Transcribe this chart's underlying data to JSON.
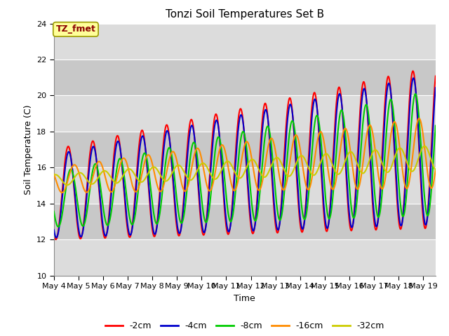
{
  "title": "Tonzi Soil Temperatures Set B",
  "xlabel": "Time",
  "ylabel": "Soil Temperature (C)",
  "ylim": [
    10,
    24
  ],
  "annotation": "TZ_fmet",
  "annotation_color": "#8B0000",
  "annotation_bg": "#FFFF99",
  "annotation_edge": "#999900",
  "bg_color_light": "#DCDCDC",
  "bg_color_dark": "#C8C8C8",
  "grid_color": "white",
  "series_colors": [
    "#FF0000",
    "#0000CC",
    "#00CC00",
    "#FF8C00",
    "#CCCC00"
  ],
  "series_labels": [
    "-2cm",
    "-4cm",
    "-8cm",
    "-16cm",
    "-32cm"
  ],
  "line_width": 1.5,
  "tick_dates": [
    "May 4",
    "May 5",
    "May 6",
    "May 7",
    "May 8",
    "May 9",
    "May 10",
    "May 11",
    "May 12",
    "May 13",
    "May 14",
    "May 15",
    "May 16",
    "May 17",
    "May 18",
    "May 19"
  ],
  "n_days": 15.5,
  "pts_per_day": 96
}
